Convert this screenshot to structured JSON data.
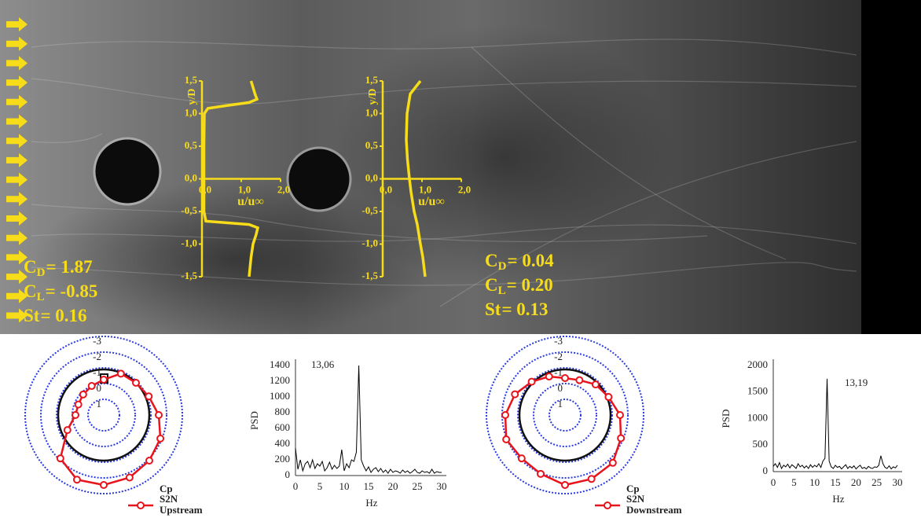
{
  "flow_image": {
    "left_coefficients": [
      {
        "symbol": "C",
        "subscript": "D",
        "value": "= 1.87"
      },
      {
        "symbol": "C",
        "subscript": "L",
        "value": "= -0.85"
      },
      {
        "symbol": "St",
        "value": "= 0.16"
      }
    ],
    "right_coefficients": [
      {
        "symbol": "C",
        "subscript": "D",
        "value": "= 0.04"
      },
      {
        "symbol": "C",
        "subscript": "L",
        "value": "= 0.20"
      },
      {
        "symbol": "St",
        "value": "= 0.13"
      }
    ]
  },
  "chart_data": [
    {
      "type": "line",
      "x_label": "u/u∞",
      "y_label": "y/D",
      "color": "#f7dc1a",
      "xlim": [
        0,
        2
      ],
      "ylim": [
        -1.5,
        1.5
      ],
      "xticks": [
        {
          "value": 0,
          "label": "0,0"
        },
        {
          "value": 1,
          "label": "1,0"
        },
        {
          "value": 2,
          "label": "2,0"
        }
      ],
      "yticks": [
        {
          "value": -1.5,
          "label": "-1,5"
        },
        {
          "value": -1,
          "label": "-1,0"
        },
        {
          "value": -0.5,
          "label": "-0,5"
        },
        {
          "value": 0,
          "label": "0,0"
        },
        {
          "value": 0.5,
          "label": "0,5"
        },
        {
          "value": 1,
          "label": "1,0"
        },
        {
          "value": 1.5,
          "label": "1,5"
        }
      ],
      "y": [
        -1.5,
        -1.2,
        -1.0,
        -0.85,
        -0.75,
        -0.7,
        -0.65,
        -0.5,
        0,
        0.5,
        1.0,
        1.08,
        1.12,
        1.17,
        1.22,
        1.3,
        1.4,
        1.5
      ],
      "values": [
        1.2,
        1.25,
        1.3,
        1.38,
        1.42,
        1.2,
        0.1,
        0.05,
        0.05,
        0.05,
        0.06,
        0.15,
        0.6,
        1.2,
        1.4,
        1.35,
        1.3,
        1.25
      ]
    },
    {
      "type": "line",
      "x_label": "u/u∞",
      "y_label": "y/D",
      "color": "#f7dc1a",
      "xlim": [
        0,
        2
      ],
      "ylim": [
        -1.5,
        1.5
      ],
      "xticks": [
        {
          "value": 0,
          "label": "0,0"
        },
        {
          "value": 1,
          "label": "1,0"
        },
        {
          "value": 2,
          "label": "2,0"
        }
      ],
      "yticks": [
        {
          "value": -1.5,
          "label": "-1,5"
        },
        {
          "value": -1,
          "label": "-1,0"
        },
        {
          "value": -0.5,
          "label": "-0,5"
        },
        {
          "value": 0,
          "label": "0,0"
        },
        {
          "value": 0.5,
          "label": "0,5"
        },
        {
          "value": 1,
          "label": "1,0"
        },
        {
          "value": 1.5,
          "label": "1,5"
        }
      ],
      "y": [
        -1.5,
        -1.2,
        -1.0,
        -0.7,
        -0.5,
        -0.2,
        0,
        0.3,
        0.6,
        1.0,
        1.3,
        1.5
      ],
      "values": [
        1.08,
        1.02,
        0.96,
        0.88,
        0.8,
        0.72,
        0.68,
        0.63,
        0.6,
        0.62,
        0.7,
        0.96
      ]
    },
    {
      "type": "polar",
      "legend_title": "Cp",
      "legend_note": "Upstream",
      "rlim": [
        2,
        -3
      ],
      "rticks": [
        -3,
        -2,
        -1,
        0,
        1
      ],
      "tick_color": "#2b3be0",
      "theta": [
        0,
        22.5,
        45,
        67.5,
        90,
        112.5,
        135,
        157.5,
        180,
        202.5,
        225,
        247.5,
        270,
        292.5,
        315,
        337.5
      ],
      "series": [
        {
          "name": "S2N",
          "color": "#e8141c",
          "values": [
            -0.25,
            -0.85,
            -0.9,
            -1.1,
            -1.5,
            -1.9,
            -2.1,
            -2.3,
            -2.45,
            -2.45,
            -1.9,
            -0.5,
            0.2,
            0.25,
            0.15,
            0
          ]
        }
      ]
    },
    {
      "type": "line",
      "x_label": "Hz",
      "y_label": "PSD",
      "annotation": "13,06",
      "color": "#000000",
      "xlim": [
        0,
        30
      ],
      "ylim": [
        0,
        1400
      ],
      "xticks": [
        0,
        5,
        10,
        15,
        20,
        25,
        30
      ],
      "yticks": [
        0,
        200,
        400,
        600,
        800,
        1000,
        1200,
        1400
      ],
      "x": [
        0,
        0.5,
        1,
        1.5,
        2,
        2.5,
        3,
        3.5,
        4,
        4.5,
        5,
        5.5,
        6,
        6.5,
        7,
        7.5,
        8,
        8.5,
        9,
        9.5,
        10,
        10.5,
        11,
        11.5,
        12,
        12.5,
        13,
        13.5,
        14,
        14.5,
        15,
        15.5,
        16,
        16.5,
        17,
        17.5,
        18,
        18.5,
        19,
        19.5,
        20,
        20.5,
        21,
        21.5,
        22,
        22.5,
        23,
        23.5,
        24,
        24.5,
        25,
        25.5,
        26,
        26.5,
        27,
        27.5,
        28,
        28.5,
        29,
        29.5,
        30
      ],
      "values": [
        350,
        80,
        200,
        60,
        150,
        180,
        100,
        200,
        90,
        150,
        120,
        180,
        60,
        100,
        170,
        80,
        130,
        90,
        120,
        330,
        60,
        150,
        100,
        200,
        180,
        300,
        1400,
        200,
        120,
        60,
        110,
        40,
        80,
        100,
        50,
        90,
        40,
        70,
        30,
        80,
        40,
        60,
        50,
        30,
        70,
        40,
        60,
        30,
        50,
        80,
        40,
        30,
        60,
        40,
        50,
        30,
        80,
        30,
        50,
        40,
        40
      ]
    },
    {
      "type": "polar",
      "legend_title": "Cp",
      "legend_note": "Downstream",
      "rlim": [
        2,
        -3
      ],
      "rticks": [
        -3,
        -2,
        -1,
        0,
        1
      ],
      "tick_color": "#2b3be0",
      "theta": [
        0,
        22.5,
        45,
        67.5,
        90,
        112.5,
        135,
        157.5,
        180,
        202.5,
        225,
        247.5,
        270,
        292.5,
        315,
        337.5
      ],
      "series": [
        {
          "name": "S2N",
          "color": "#e8141c",
          "values": [
            -0.35,
            -0.4,
            -0.75,
            -1.0,
            -1.5,
            -1.85,
            -2.3,
            -2.4,
            -2.45,
            -2.05,
            -1.9,
            -2.05,
            -1.8,
            -1.45,
            -1.0,
            -0.65
          ]
        }
      ]
    },
    {
      "type": "line",
      "x_label": "Hz",
      "y_label": "PSD",
      "annotation": "13,19",
      "color": "#000000",
      "xlim": [
        0,
        30
      ],
      "ylim": [
        0,
        2000
      ],
      "xticks": [
        0,
        5,
        10,
        15,
        20,
        25,
        30
      ],
      "yticks": [
        0,
        500,
        1000,
        1500,
        2000
      ],
      "x": [
        0,
        0.5,
        1,
        1.5,
        2,
        2.5,
        3,
        3.5,
        4,
        4.5,
        5,
        5.5,
        6,
        6.5,
        7,
        7.5,
        8,
        8.5,
        9,
        9.5,
        10,
        10.5,
        11,
        11.5,
        12,
        12.5,
        13,
        13.5,
        14,
        14.5,
        15,
        15.5,
        16,
        16.5,
        17,
        17.5,
        18,
        18.5,
        19,
        19.5,
        20,
        20.5,
        21,
        21.5,
        22,
        22.5,
        23,
        23.5,
        24,
        24.5,
        25,
        25.5,
        26,
        26.5,
        27,
        27.5,
        28,
        28.5,
        29,
        29.5,
        30
      ],
      "values": [
        100,
        150,
        80,
        170,
        60,
        120,
        90,
        140,
        70,
        130,
        100,
        60,
        150,
        90,
        120,
        70,
        110,
        60,
        130,
        80,
        120,
        90,
        150,
        80,
        200,
        250,
        1750,
        200,
        90,
        60,
        120,
        80,
        100,
        50,
        90,
        130,
        60,
        100,
        70,
        110,
        50,
        90,
        120,
        60,
        80,
        50,
        100,
        70,
        60,
        90,
        80,
        120,
        300,
        150,
        80,
        60,
        110,
        50,
        90,
        70,
        120
      ]
    }
  ]
}
